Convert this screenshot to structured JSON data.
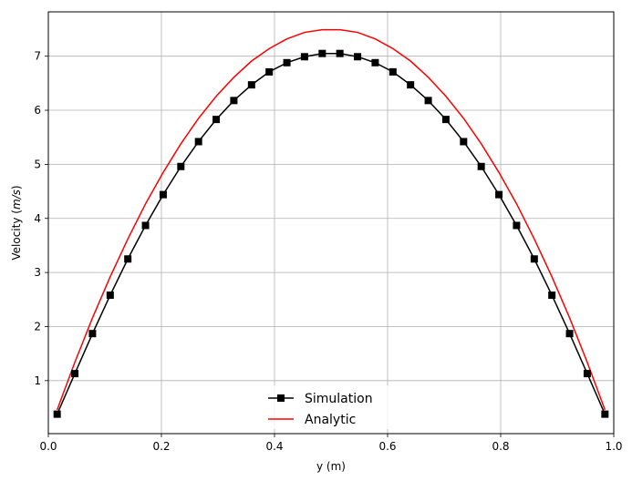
{
  "chart_data": {
    "type": "line",
    "title": "",
    "xlabel": "y (m)",
    "ylabel": "Velocity (m/s)",
    "xlim": [
      0.0,
      1.0
    ],
    "ylim": [
      0.02,
      7.82
    ],
    "xticks": [
      {
        "value": 0.0,
        "label": "0.0"
      },
      {
        "value": 0.2,
        "label": "0.2"
      },
      {
        "value": 0.4,
        "label": "0.4"
      },
      {
        "value": 0.6,
        "label": "0.6"
      },
      {
        "value": 0.8,
        "label": "0.8"
      },
      {
        "value": 1.0,
        "label": "1.0"
      }
    ],
    "yticks": [
      {
        "value": 1,
        "label": "1"
      },
      {
        "value": 2,
        "label": "2"
      },
      {
        "value": 3,
        "label": "3"
      },
      {
        "value": 4,
        "label": "4"
      },
      {
        "value": 5,
        "label": "5"
      },
      {
        "value": 6,
        "label": "6"
      },
      {
        "value": 7,
        "label": "7"
      }
    ],
    "grid": true,
    "legend_position": "bottom-center",
    "series": [
      {
        "name": "Simulation",
        "color": "#000000",
        "marker": "square",
        "x": [
          0.0156,
          0.0469,
          0.0781,
          0.1094,
          0.1406,
          0.1719,
          0.2031,
          0.2344,
          0.2656,
          0.2969,
          0.3281,
          0.3594,
          0.3906,
          0.4219,
          0.4531,
          0.4844,
          0.5156,
          0.5469,
          0.5781,
          0.6094,
          0.6406,
          0.6719,
          0.7031,
          0.7344,
          0.7656,
          0.7969,
          0.8281,
          0.8594,
          0.8906,
          0.9219,
          0.9531,
          0.9844
        ],
        "y": [
          0.38,
          1.13,
          1.87,
          2.58,
          3.25,
          3.87,
          4.44,
          4.96,
          5.42,
          5.83,
          6.18,
          6.47,
          6.71,
          6.88,
          6.99,
          7.05,
          7.05,
          6.99,
          6.88,
          6.71,
          6.47,
          6.18,
          5.83,
          5.42,
          4.96,
          4.44,
          3.87,
          3.25,
          2.58,
          1.87,
          1.13,
          0.38
        ]
      },
      {
        "name": "Analytic",
        "color": "#ff0000",
        "marker": "none",
        "x": [
          0.0156,
          0.0469,
          0.0781,
          0.1094,
          0.1406,
          0.1719,
          0.2031,
          0.2344,
          0.2656,
          0.2969,
          0.3281,
          0.3594,
          0.3906,
          0.4219,
          0.4531,
          0.4844,
          0.5156,
          0.5469,
          0.5781,
          0.6094,
          0.6406,
          0.6719,
          0.7031,
          0.7344,
          0.7656,
          0.7969,
          0.8281,
          0.8594,
          0.8906,
          0.9219,
          0.9531,
          0.9844
        ],
        "y": [
          0.46,
          1.34,
          2.16,
          2.92,
          3.62,
          4.27,
          4.85,
          5.38,
          5.85,
          6.26,
          6.61,
          6.91,
          7.14,
          7.32,
          7.44,
          7.49,
          7.49,
          7.44,
          7.32,
          7.14,
          6.91,
          6.61,
          6.26,
          5.85,
          5.38,
          4.85,
          4.27,
          3.62,
          2.92,
          2.16,
          1.34,
          0.46
        ]
      }
    ]
  }
}
